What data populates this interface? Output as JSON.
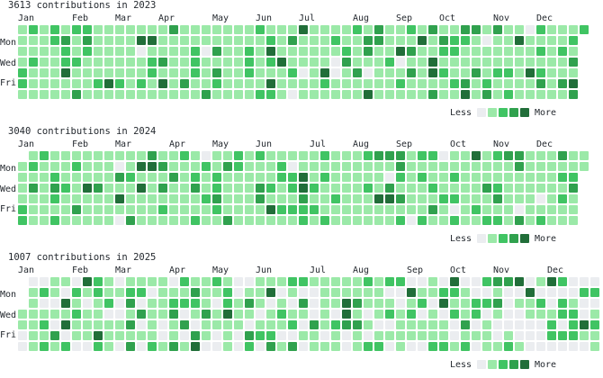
{
  "colors": {
    "level0": "#ebedf0",
    "level1": "#9be9a8",
    "level2": "#40c463",
    "level3": "#30a14e",
    "level4": "#216e39"
  },
  "day_labels": [
    "Mon",
    "Wed",
    "Fri"
  ],
  "legend": {
    "less": "Less",
    "more": "More"
  },
  "years": [
    {
      "title": "3613 contributions in 2023",
      "months": [
        "Jan",
        "Feb",
        "Mar",
        "Apr",
        "May",
        "Jun",
        "Jul",
        "Aug",
        "Sep",
        "Oct",
        "Nov",
        "Dec"
      ],
      "leading_empty_days": 0,
      "levels": "",
      "seed": 11
    },
    {
      "title": "3040 contributions in 2024",
      "months": [
        "Jan",
        "Feb",
        "Mar",
        "Apr",
        "May",
        "Jun",
        "Jul",
        "Aug",
        "Sep",
        "Oct",
        "Nov",
        "Dec"
      ],
      "leading_empty_days": 1,
      "levels": "",
      "seed": 23
    },
    {
      "title": "1007 contributions in 2025",
      "months": [
        "Jan",
        "Feb",
        "Mar",
        "Apr",
        "May",
        "Jun",
        "Jul",
        "Aug",
        "Sep",
        "Oct",
        "Nov",
        "Dec"
      ],
      "leading_empty_days": 3,
      "levels": "",
      "seed": 37
    }
  ]
}
